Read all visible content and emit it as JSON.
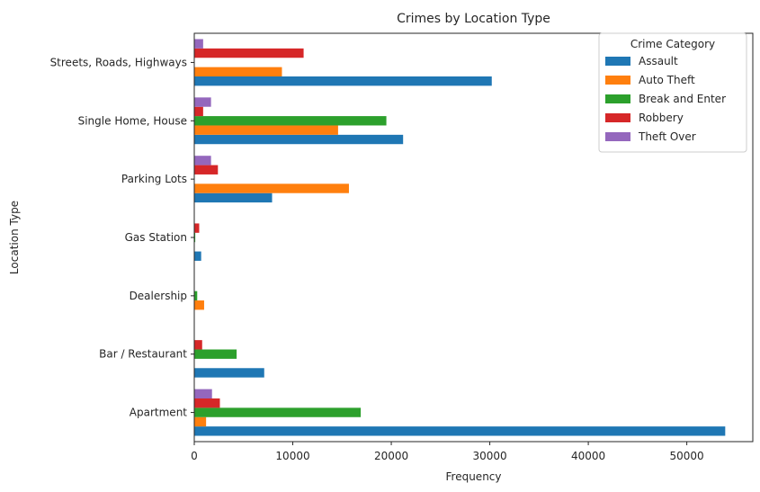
{
  "chart_data": {
    "type": "bar",
    "orientation": "horizontal",
    "title": "Crimes by Location Type",
    "xlabel": "Frequency",
    "ylabel": "Location Type",
    "xlim": [
      0,
      56700
    ],
    "xticks": [
      0,
      10000,
      20000,
      30000,
      40000,
      50000
    ],
    "xtick_labels": [
      "0",
      "10000",
      "20000",
      "30000",
      "40000",
      "50000"
    ],
    "categories": [
      "Apartment",
      "Bar / Restaurant",
      "Dealership",
      "Gas Station",
      "Parking Lots",
      "Single Home, House",
      "Streets, Roads, Highways"
    ],
    "series": [
      {
        "name": "Assault",
        "color": "#1f77b4",
        "values": [
          53900,
          7100,
          0,
          700,
          7900,
          21200,
          30200
        ]
      },
      {
        "name": "Auto Theft",
        "color": "#ff7f0e",
        "values": [
          1200,
          0,
          1000,
          0,
          15700,
          14600,
          8900
        ]
      },
      {
        "name": "Break and Enter",
        "color": "#2ca02c",
        "values": [
          16900,
          4300,
          300,
          100,
          0,
          19500,
          0
        ]
      },
      {
        "name": "Robbery",
        "color": "#d62728",
        "values": [
          2600,
          800,
          0,
          500,
          2400,
          900,
          11100
        ]
      },
      {
        "name": "Theft Over",
        "color": "#9467bd",
        "values": [
          1800,
          0,
          0,
          0,
          1700,
          1700,
          900
        ]
      }
    ],
    "legend": {
      "title": "Crime Category",
      "position": "top-right"
    },
    "grid": false
  }
}
